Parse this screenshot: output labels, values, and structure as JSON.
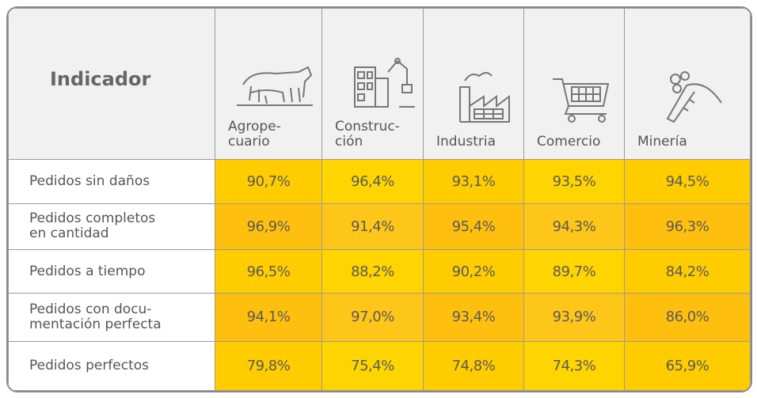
{
  "table": {
    "header": [
      "Indicador",
      "Agrope-\ncuario",
      "Construc-\nción",
      "Industria",
      "Comercio",
      "Minería"
    ],
    "rows": [
      [
        "Pedidos sin daños",
        "90,7%",
        "96,4%",
        "93,1%",
        "93,5%",
        "94,5%"
      ],
      [
        "Pedidos completos\nen cantidad",
        "96,9%",
        "91,4%",
        "95,4%",
        "94,3%",
        "96,3%"
      ],
      [
        "Pedidos a tiempo",
        "96,5%",
        "88,2%",
        "90,2%",
        "89,7%",
        "84,2%"
      ],
      [
        "Pedidos con docu-\nmentación perfecta",
        "94,1%",
        "97,0%",
        "93,4%",
        "93,9%",
        "86,0%"
      ],
      [
        "Pedidos perfectos",
        "79,8%",
        "75,4%",
        "74,8%",
        "74,3%",
        "65,9%"
      ]
    ]
  }
}
